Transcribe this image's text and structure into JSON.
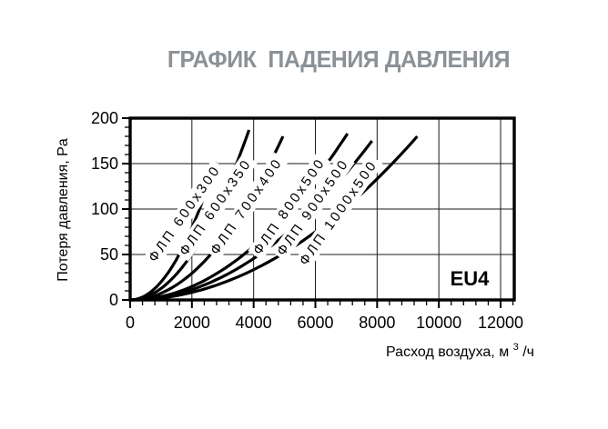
{
  "title": {
    "text": "ГРАФИК  ПАДЕНИЯ ДАВЛЕНИЯ",
    "color": "#8b9196"
  },
  "chart_data": {
    "type": "line",
    "title": "ГРАФИК ПАДЕНИЯ ДАВЛЕНИЯ",
    "xlabel": {
      "prefix": "Расход воздуха, м",
      "sup": "3",
      "suffix": "/ч"
    },
    "ylabel": "Потеря давления, Pa",
    "annotation": "EU4",
    "xlim": [
      0,
      12440
    ],
    "ylim": [
      0,
      200
    ],
    "x_ticks": [
      0,
      2000,
      4000,
      6000,
      8000,
      10000,
      12000
    ],
    "x_minor_step": 400,
    "y_ticks": [
      0,
      50,
      100,
      150,
      200
    ],
    "y_minor_step": 10,
    "grid": true,
    "legend_position": "inline-curve-labels",
    "curve_label_rotation_deg": -55,
    "series": [
      {
        "name": "ФЛП 600x300",
        "q_max": 2770,
        "p_max": 152,
        "points": [
          [
            0,
            0
          ],
          [
            1590,
            50
          ],
          [
            2250,
            100
          ],
          [
            2750,
            150
          ],
          [
            2770,
            152
          ]
        ],
        "label_pos": {
          "x": 203,
          "y": 235
        }
      },
      {
        "name": "ФЛП 600x350",
        "q_max": 3850,
        "p_max": 187,
        "points": [
          [
            0,
            0
          ],
          [
            1990,
            50
          ],
          [
            2820,
            100
          ],
          [
            3450,
            150
          ],
          [
            3850,
            187
          ]
        ],
        "label_pos": {
          "x": 237,
          "y": 228
        }
      },
      {
        "name": "ФЛП 700x400",
        "q_max": 4950,
        "p_max": 180,
        "points": [
          [
            0,
            0
          ],
          [
            2610,
            50
          ],
          [
            3690,
            100
          ],
          [
            4520,
            150
          ],
          [
            4950,
            180
          ]
        ],
        "label_pos": {
          "x": 271,
          "y": 227
        }
      },
      {
        "name": "ФЛП 800x500",
        "q_max": 7040,
        "p_max": 183,
        "points": [
          [
            0,
            0
          ],
          [
            3680,
            50
          ],
          [
            5200,
            100
          ],
          [
            6380,
            150
          ],
          [
            7040,
            183
          ]
        ],
        "label_pos": {
          "x": 318,
          "y": 227
        }
      },
      {
        "name": "ФЛП 900x500",
        "q_max": 7835,
        "p_max": 175,
        "points": [
          [
            0,
            0
          ],
          [
            4190,
            50
          ],
          [
            5920,
            100
          ],
          [
            7250,
            150
          ],
          [
            7835,
            175
          ]
        ],
        "label_pos": {
          "x": 344,
          "y": 228
        }
      },
      {
        "name": "ФЛП 1000x500",
        "q_max": 9300,
        "p_max": 180,
        "points": [
          [
            0,
            0
          ],
          [
            4900,
            50
          ],
          [
            6930,
            100
          ],
          [
            8490,
            150
          ],
          [
            9300,
            180
          ]
        ],
        "label_pos": {
          "x": 372,
          "y": 234
        }
      }
    ]
  },
  "colors": {
    "curve": "#000000",
    "grid": "#1a1a1a",
    "border": "#000000",
    "title_gray": "#8b9196",
    "background": "#ffffff"
  }
}
